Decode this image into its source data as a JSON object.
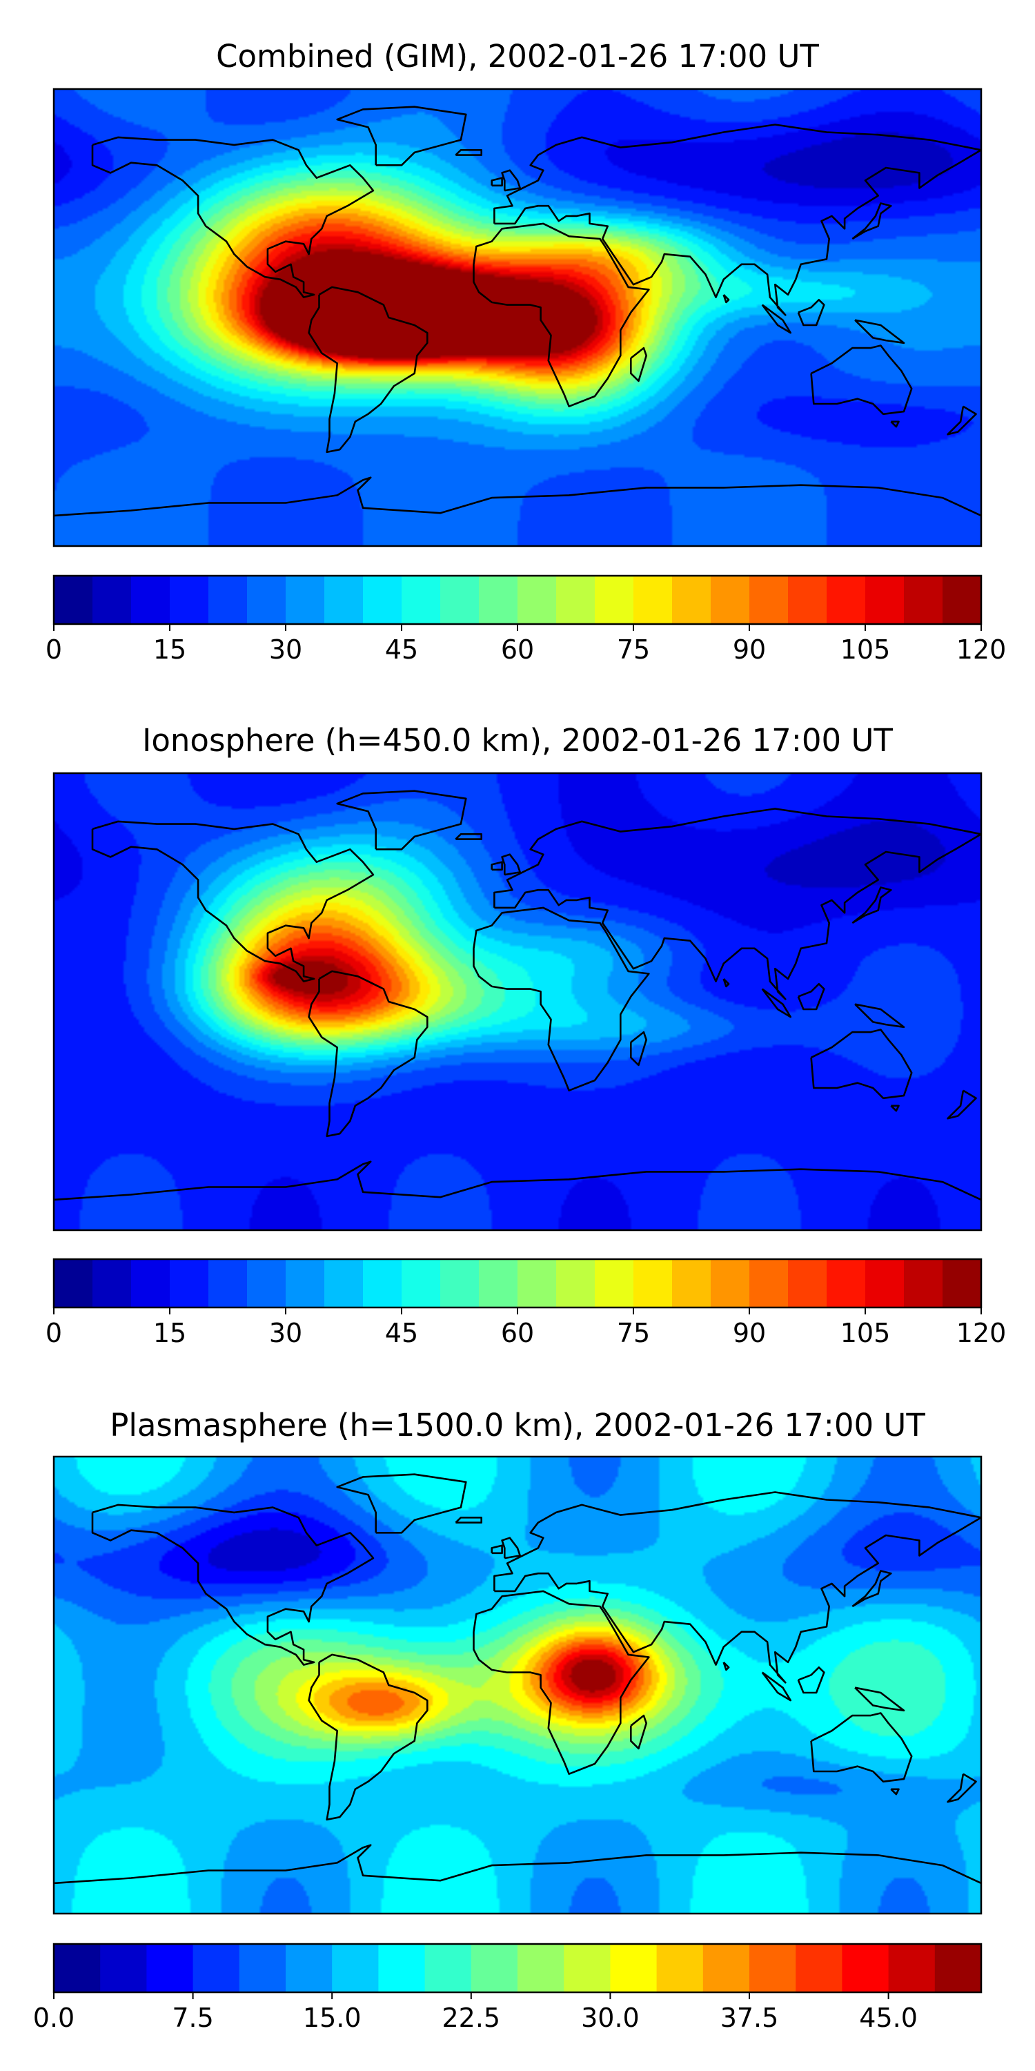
{
  "chart_data": [
    {
      "type": "heatmap",
      "title": "Combined (GIM), 2002-01-26 17:00 UT",
      "xlabel": "",
      "ylabel": "",
      "colorbar": {
        "vmin": 0,
        "vmax": 120,
        "levels": 24,
        "ticks": [
          0,
          15,
          30,
          45,
          60,
          75,
          90,
          105,
          120
        ],
        "tick_labels": [
          "0",
          "15",
          "30",
          "45",
          "60",
          "75",
          "90",
          "105",
          "120"
        ]
      },
      "background_value": 25,
      "blobs": [
        {
          "lon": -50,
          "lat": 0,
          "value": 115,
          "sx": 24,
          "sy": 9
        },
        {
          "lon": -60,
          "lat": 5,
          "value": 70,
          "sx": 55,
          "sy": 22
        },
        {
          "lon": -20,
          "lat": 0,
          "value": 55,
          "sx": 45,
          "sy": 14
        },
        {
          "lon": -75,
          "lat": 35,
          "value": 45,
          "sx": 35,
          "sy": 20
        },
        {
          "lon": 20,
          "lat": -10,
          "value": 45,
          "sx": 25,
          "sy": 20
        },
        {
          "lon": 40,
          "lat": 25,
          "value": 30,
          "sx": 30,
          "sy": 10
        },
        {
          "lon": 100,
          "lat": 10,
          "value": 18,
          "sx": 35,
          "sy": 8
        },
        {
          "lon": 120,
          "lat": 60,
          "value": -18,
          "sx": 70,
          "sy": 15
        },
        {
          "lon": 140,
          "lat": -40,
          "value": -8,
          "sx": 45,
          "sy": 10
        }
      ]
    },
    {
      "type": "heatmap",
      "title": "Ionosphere  (h=450.0 km), 2002-01-26 17:00 UT",
      "xlabel": "",
      "ylabel": "",
      "colorbar": {
        "vmin": 0,
        "vmax": 120,
        "levels": 24,
        "ticks": [
          0,
          15,
          30,
          45,
          60,
          75,
          90,
          105,
          120
        ],
        "tick_labels": [
          "0",
          "15",
          "30",
          "45",
          "60",
          "75",
          "90",
          "105",
          "120"
        ]
      },
      "background_value": 18,
      "blobs": [
        {
          "lon": -80,
          "lat": 10,
          "value": 60,
          "sx": 30,
          "sy": 18
        },
        {
          "lon": -45,
          "lat": 0,
          "value": 40,
          "sx": 45,
          "sy": 14
        },
        {
          "lon": -70,
          "lat": 40,
          "value": 40,
          "sx": 35,
          "sy": 20
        },
        {
          "lon": -90,
          "lat": 10,
          "value": 15,
          "sx": 10,
          "sy": 4
        },
        {
          "lon": 20,
          "lat": 20,
          "value": 12,
          "sx": 35,
          "sy": 10
        },
        {
          "lon": 60,
          "lat": -10,
          "value": 12,
          "sx": 40,
          "sy": 8
        },
        {
          "lon": 120,
          "lat": 55,
          "value": -10,
          "sx": 55,
          "sy": 15
        }
      ]
    },
    {
      "type": "heatmap",
      "title": "Plasmasphere (h=1500.0 km), 2002-01-26 17:00 UT",
      "xlabel": "",
      "ylabel": "",
      "colorbar": {
        "vmin": 0,
        "vmax": 50,
        "levels": 20,
        "ticks": [
          0,
          7.5,
          15,
          22.5,
          30,
          37.5,
          45
        ],
        "tick_labels": [
          "0.0",
          "7.5",
          "15.0",
          "22.5",
          "30.0",
          "37.5",
          "45.0"
        ]
      },
      "background_value": 16,
      "blobs": [
        {
          "lon": 30,
          "lat": 5,
          "value": 20,
          "sx": 16,
          "sy": 12
        },
        {
          "lon": -52,
          "lat": -8,
          "value": 16,
          "sx": 20,
          "sy": 10
        },
        {
          "lon": 0,
          "lat": 0,
          "value": 12,
          "sx": 80,
          "sy": 18
        },
        {
          "lon": -100,
          "lat": 50,
          "value": -12,
          "sx": 45,
          "sy": 15
        },
        {
          "lon": 140,
          "lat": 50,
          "value": -6,
          "sx": 40,
          "sy": 15
        },
        {
          "lon": 120,
          "lat": -40,
          "value": -4,
          "sx": 40,
          "sy": 8
        }
      ]
    }
  ]
}
